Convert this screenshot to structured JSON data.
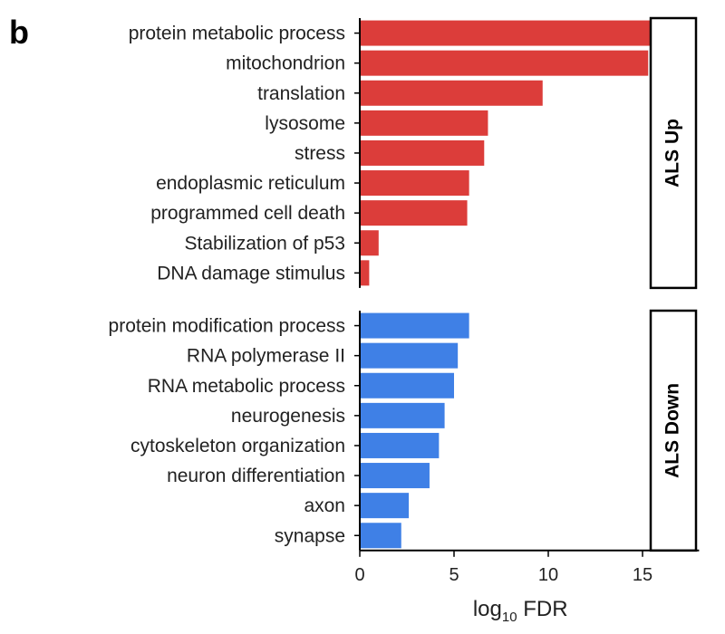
{
  "panel_label": "b",
  "colors": {
    "up": "#dc3d3a",
    "down": "#3f80e6",
    "axis": "#000000",
    "text": "#222222"
  },
  "chart_data": {
    "type": "bar",
    "orientation": "horizontal",
    "xlabel_main": "log",
    "xlabel_sub": "10",
    "xlabel_rest": " FDR",
    "xlim": [
      0,
      18
    ],
    "xticks": [
      0,
      5,
      10,
      15
    ],
    "grid": false,
    "panels": [
      {
        "name": "ALS Up",
        "color": "#dc3d3a",
        "categories": [
          "protein metabolic process",
          "mitochondrion",
          "translation",
          "lysosome",
          "stress",
          "endoplasmic reticulum",
          "programmed cell death",
          "Stabilization of p53",
          "DNA damage stimulus"
        ],
        "values": [
          15.4,
          15.3,
          9.7,
          6.8,
          6.6,
          5.8,
          5.7,
          1.0,
          0.5
        ]
      },
      {
        "name": "ALS Down",
        "color": "#3f80e6",
        "categories": [
          "protein modification process",
          "RNA polymerase II",
          "RNA metabolic process",
          "neurogenesis",
          "cytoskeleton organization",
          "neuron differentiation",
          "axon",
          "synapse"
        ],
        "values": [
          5.8,
          5.2,
          5.0,
          4.5,
          4.2,
          3.7,
          2.6,
          2.2
        ]
      }
    ]
  }
}
